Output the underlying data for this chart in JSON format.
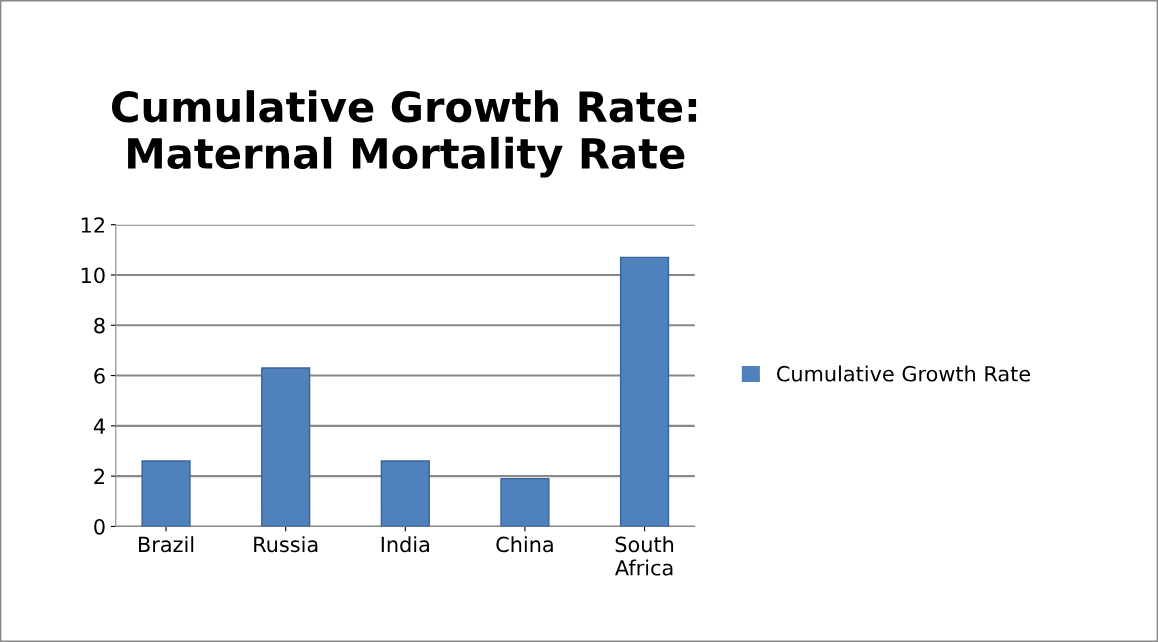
{
  "chart_data": {
    "type": "bar",
    "title": "Cumulative Growth Rate: Maternal Mortality Rate",
    "categories": [
      "Brazil",
      "Russia",
      "India",
      "China",
      "South\nAfrica"
    ],
    "series": [
      {
        "name": "Cumulative Growth Rate",
        "color": "#4f81bd",
        "values": [
          2.6,
          6.3,
          2.6,
          1.9,
          10.7
        ]
      }
    ],
    "ylim": [
      0,
      12
    ],
    "yticks": [
      0,
      2,
      4,
      6,
      8,
      10,
      12
    ],
    "grid": "y",
    "legend": "right"
  }
}
